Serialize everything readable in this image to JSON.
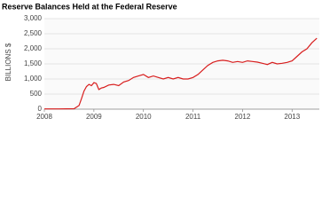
{
  "chart_data": {
    "type": "line",
    "title": "Reserve Balances Held at the Federal Reserve",
    "y_label": "BILLIONS $",
    "x": [
      2008.0,
      2008.3,
      2008.6,
      2008.7,
      2008.75,
      2008.8,
      2008.85,
      2008.9,
      2008.95,
      2009.0,
      2009.05,
      2009.1,
      2009.15,
      2009.2,
      2009.3,
      2009.4,
      2009.5,
      2009.6,
      2009.7,
      2009.8,
      2009.9,
      2010.0,
      2010.1,
      2010.2,
      2010.3,
      2010.4,
      2010.5,
      2010.6,
      2010.7,
      2010.8,
      2010.9,
      2011.0,
      2011.1,
      2011.2,
      2011.3,
      2011.4,
      2011.5,
      2011.6,
      2011.7,
      2011.8,
      2011.9,
      2012.0,
      2012.1,
      2012.2,
      2012.3,
      2012.4,
      2012.5,
      2012.6,
      2012.7,
      2012.8,
      2012.9,
      2013.0,
      2013.1,
      2013.2,
      2013.3,
      2013.4,
      2013.5
    ],
    "series": [
      {
        "name": "Reserve balances",
        "color": "#d81e1e",
        "values": [
          10,
          10,
          15,
          120,
          350,
          600,
          750,
          820,
          780,
          880,
          850,
          650,
          700,
          720,
          800,
          820,
          780,
          900,
          950,
          1050,
          1100,
          1150,
          1050,
          1100,
          1050,
          1000,
          1050,
          1000,
          1050,
          1000,
          1000,
          1050,
          1150,
          1300,
          1450,
          1550,
          1600,
          1620,
          1600,
          1550,
          1580,
          1550,
          1600,
          1580,
          1560,
          1520,
          1480,
          1550,
          1500,
          1520,
          1550,
          1600,
          1750,
          1900,
          2000,
          2200,
          2350
        ]
      }
    ],
    "xlim": [
      2008.0,
      2013.55
    ],
    "xticks": [
      2008,
      2009,
      2010,
      2011,
      2012,
      2013
    ],
    "ylim": [
      0,
      3000
    ],
    "yticks": [
      0,
      500,
      {
        "value": 1000,
        "label": "1,000"
      },
      {
        "value": 1500,
        "label": "1,500"
      },
      {
        "value": 2000,
        "label": "2,000"
      },
      {
        "value": 2500,
        "label": "2,500"
      },
      {
        "value": 3000,
        "label": "3,000"
      }
    ],
    "grid": true
  }
}
